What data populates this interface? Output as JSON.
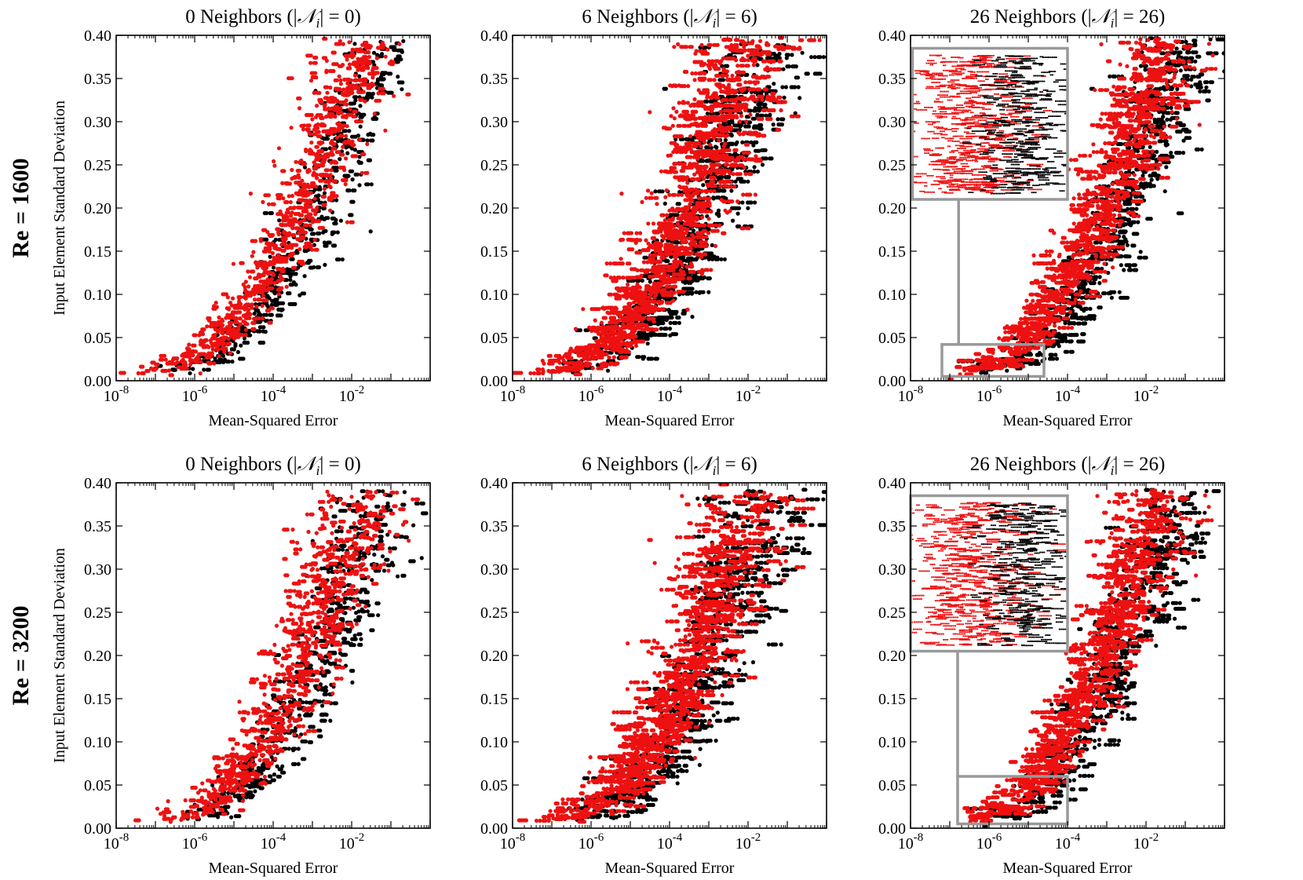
{
  "figure": {
    "row_labels": [
      "Re = 1600",
      "Re = 3200"
    ]
  },
  "chart_data": [
    {
      "type": "scatter",
      "row": 0,
      "col": 0,
      "title_text": "0 Neighbors (|",
      "title_math": "𝒩",
      "title_sub": "i",
      "title_tail": "| = 0)",
      "xlabel": "Mean-Squared Error",
      "ylabel": "Input Element Standard Deviation",
      "xscale": "log",
      "xlim": [
        1e-08,
        1
      ],
      "ylim": [
        0,
        0.4
      ],
      "xticks": [
        -8,
        -6,
        -4,
        -2
      ],
      "yticks": [
        "0.00",
        "0.05",
        "0.10",
        "0.15",
        "0.20",
        "0.25",
        "0.30",
        "0.35",
        "0.40"
      ],
      "trend": {
        "log_mse_at_y0": -7.2,
        "log_mse_at_top": -1.6,
        "power": 2.2,
        "y_max": 0.395,
        "spread": 0.55,
        "streak_len": 0.45
      },
      "series": [
        {
          "color": "#000000"
        },
        {
          "color": "#ee1111"
        }
      ],
      "inset": null
    },
    {
      "type": "scatter",
      "row": 0,
      "col": 1,
      "title_text": "6 Neighbors (|",
      "title_math": "𝒩",
      "title_sub": "i",
      "title_tail": "| = 6)",
      "xlabel": "Mean-Squared Error",
      "ylabel": "",
      "xscale": "log",
      "xlim": [
        1e-08,
        1
      ],
      "ylim": [
        0,
        0.4
      ],
      "xticks": [
        -8,
        -6,
        -4,
        -2
      ],
      "yticks": [
        "0.00",
        "0.05",
        "0.10",
        "0.15",
        "0.20",
        "0.25",
        "0.30",
        "0.35",
        "0.40"
      ],
      "trend": {
        "log_mse_at_y0": -6.9,
        "log_mse_at_top": -1.9,
        "power": 2.0,
        "y_max": 0.395,
        "spread": 0.7,
        "streak_len": 0.9
      },
      "series": [
        {
          "color": "#000000"
        },
        {
          "color": "#ee1111"
        }
      ],
      "inset": null
    },
    {
      "type": "scatter",
      "row": 0,
      "col": 2,
      "title_text": "26 Neighbors (|",
      "title_math": "𝒩",
      "title_sub": "i",
      "title_tail": "| = 26)",
      "xlabel": "Mean-Squared Error",
      "ylabel": "",
      "xscale": "log",
      "xlim": [
        1e-08,
        1
      ],
      "ylim": [
        0,
        0.4
      ],
      "xticks": [
        -8,
        -6,
        -4,
        -2
      ],
      "yticks": [
        "0.00",
        "0.05",
        "0.10",
        "0.15",
        "0.20",
        "0.25",
        "0.30",
        "0.35",
        "0.40"
      ],
      "trend": {
        "log_mse_at_y0": -7.0,
        "log_mse_at_top": -1.5,
        "power": 2.4,
        "y_max": 0.395,
        "spread": 0.6,
        "streak_len": 0.8
      },
      "series": [
        {
          "color": "#000000"
        },
        {
          "color": "#ee1111"
        }
      ],
      "inset": {
        "zoom_x": [
          -7.2,
          -4.6
        ],
        "zoom_y": [
          0.005,
          0.042
        ],
        "box_x": [
          -7.95,
          -4.0
        ],
        "box_y": [
          0.21,
          0.385
        ]
      }
    },
    {
      "type": "scatter",
      "row": 1,
      "col": 0,
      "title_text": "0 Neighbors (|",
      "title_math": "𝒩",
      "title_sub": "i",
      "title_tail": "| = 0)",
      "xlabel": "Mean-Squared Error",
      "ylabel": "Input Element Standard Deviation",
      "xscale": "log",
      "xlim": [
        1e-08,
        1
      ],
      "ylim": [
        0,
        0.4
      ],
      "xticks": [
        -8,
        -6,
        -4,
        -2
      ],
      "yticks": [
        "0.00",
        "0.05",
        "0.10",
        "0.15",
        "0.20",
        "0.25",
        "0.30",
        "0.35",
        "0.40"
      ],
      "trend": {
        "log_mse_at_y0": -6.7,
        "log_mse_at_top": -1.6,
        "power": 2.1,
        "y_max": 0.39,
        "spread": 0.6,
        "streak_len": 0.5
      },
      "series": [
        {
          "color": "#000000"
        },
        {
          "color": "#ee1111"
        }
      ],
      "inset": null
    },
    {
      "type": "scatter",
      "row": 1,
      "col": 1,
      "title_text": "6 Neighbors (|",
      "title_math": "𝒩",
      "title_sub": "i",
      "title_tail": "| = 6)",
      "xlabel": "Mean-Squared Error",
      "ylabel": "",
      "xscale": "log",
      "xlim": [
        1e-08,
        1
      ],
      "ylim": [
        0,
        0.4
      ],
      "xticks": [
        -8,
        -6,
        -4,
        -2
      ],
      "yticks": [
        "0.00",
        "0.05",
        "0.10",
        "0.15",
        "0.20",
        "0.25",
        "0.30",
        "0.35",
        "0.40"
      ],
      "trend": {
        "log_mse_at_y0": -6.8,
        "log_mse_at_top": -1.8,
        "power": 2.1,
        "y_max": 0.39,
        "spread": 0.7,
        "streak_len": 0.9
      },
      "series": [
        {
          "color": "#000000"
        },
        {
          "color": "#ee1111"
        }
      ],
      "inset": null
    },
    {
      "type": "scatter",
      "row": 1,
      "col": 2,
      "title_text": "26 Neighbors (|",
      "title_math": "𝒩",
      "title_sub": "i",
      "title_tail": "| = 26)",
      "xlabel": "Mean-Squared Error",
      "ylabel": "",
      "xscale": "log",
      "xlim": [
        1e-08,
        1
      ],
      "ylim": [
        0,
        0.4
      ],
      "xticks": [
        -8,
        -6,
        -4,
        -2
      ],
      "yticks": [
        "0.00",
        "0.05",
        "0.10",
        "0.15",
        "0.20",
        "0.25",
        "0.30",
        "0.35",
        "0.40"
      ],
      "trend": {
        "log_mse_at_y0": -6.6,
        "log_mse_at_top": -1.6,
        "power": 2.2,
        "y_max": 0.39,
        "spread": 0.6,
        "streak_len": 0.8
      },
      "series": [
        {
          "color": "#000000"
        },
        {
          "color": "#ee1111"
        }
      ],
      "inset": {
        "zoom_x": [
          -6.8,
          -4.0
        ],
        "zoom_y": [
          0.005,
          0.06
        ],
        "box_x": [
          -8.0,
          -4.0
        ],
        "box_y": [
          0.205,
          0.385
        ]
      }
    }
  ]
}
